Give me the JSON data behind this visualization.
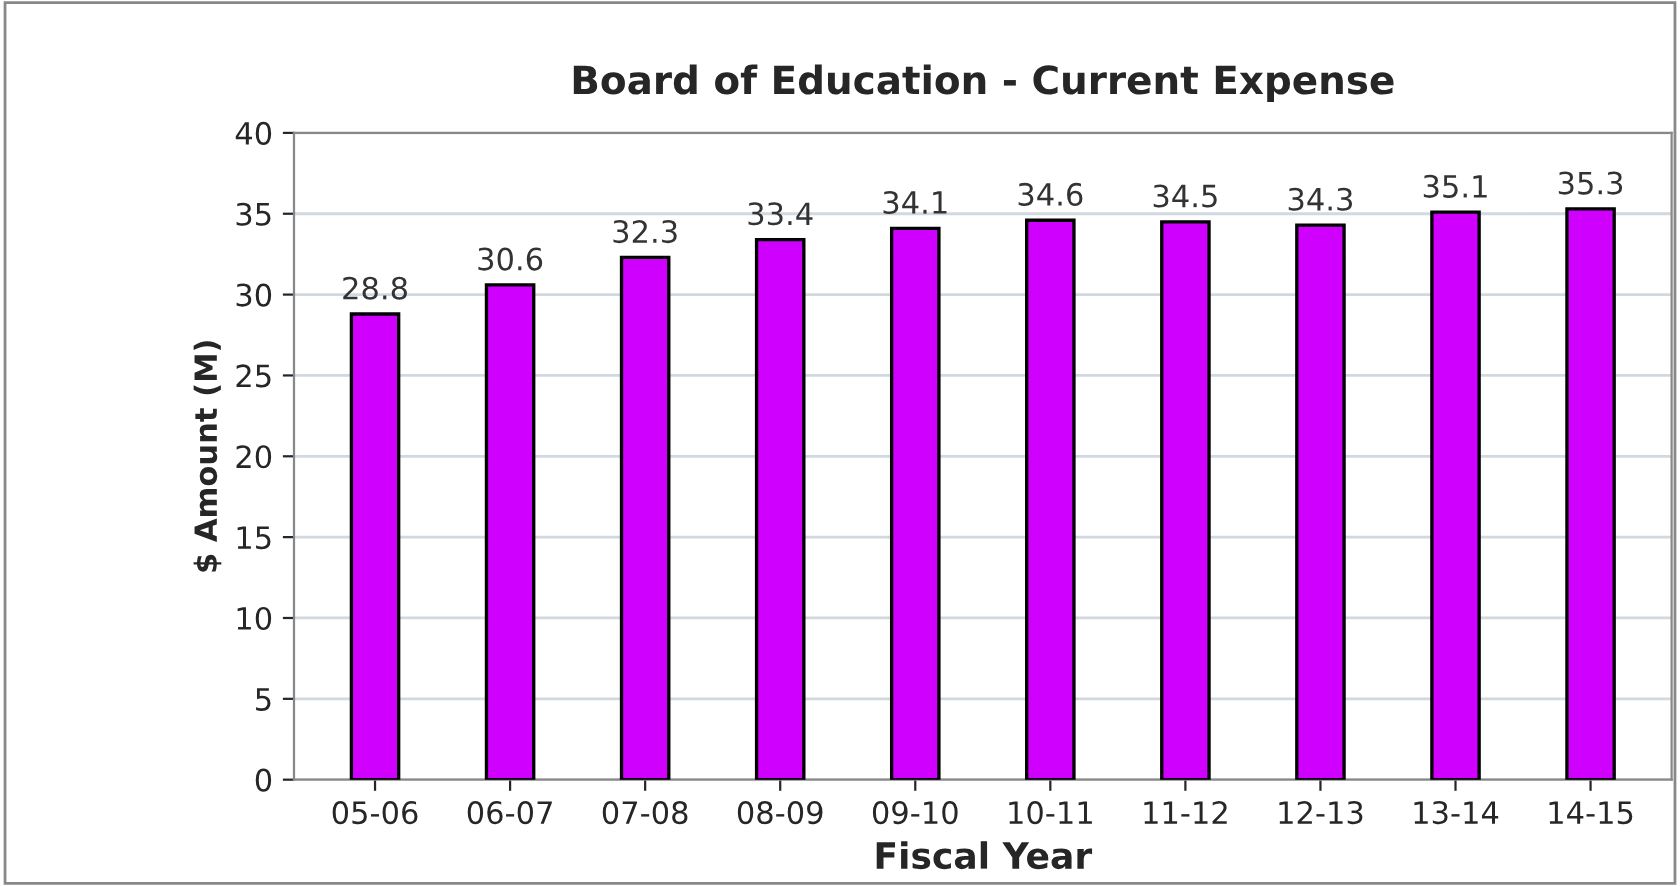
{
  "chart_data": {
    "type": "bar",
    "title": "Board of Education - Current Expense",
    "xlabel": "Fiscal Year",
    "ylabel": "$ Amount (M)",
    "categories": [
      "05-06",
      "06-07",
      "07-08",
      "08-09",
      "09-10",
      "10-11",
      "11-12",
      "12-13",
      "13-14",
      "14-15"
    ],
    "values": [
      28.8,
      30.6,
      32.3,
      33.4,
      34.1,
      34.6,
      34.5,
      34.3,
      35.1,
      35.3
    ],
    "color": "#d000ff",
    "ylim": [
      0,
      40
    ],
    "yticks": [
      0,
      5,
      10,
      15,
      20,
      25,
      30,
      35,
      40
    ],
    "grid": "y",
    "data_labels": true,
    "legend": false
  }
}
